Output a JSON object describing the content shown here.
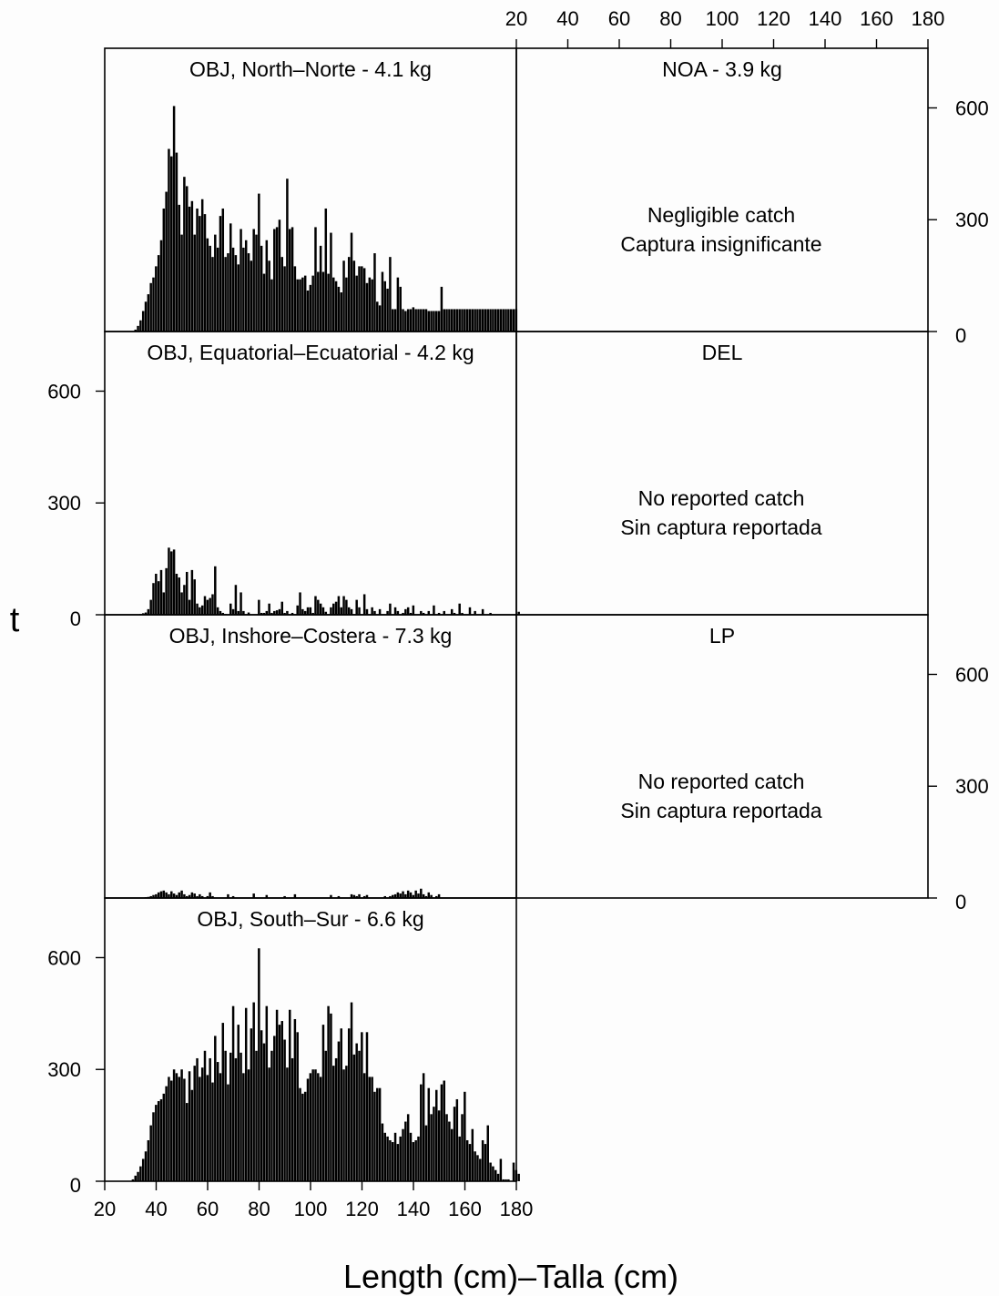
{
  "chart_data": {
    "type": "bar",
    "ylabel": "t",
    "xlabel": "Length (cm)–Talla (cm)",
    "xlim": [
      20,
      180
    ],
    "ylim": [
      0,
      760
    ],
    "x_ticks": [
      "20",
      "40",
      "60",
      "80",
      "100",
      "120",
      "140",
      "160",
      "180"
    ],
    "y_ticks": [
      "0",
      "300",
      "600"
    ],
    "panels": [
      {
        "id": "obj-north",
        "title": "OBJ, North–Norte - 4.1 kg",
        "note": [],
        "start_length": 32,
        "values": [
          5,
          15,
          30,
          55,
          80,
          100,
          130,
          145,
          175,
          205,
          245,
          330,
          375,
          490,
          470,
          605,
          480,
          340,
          260,
          415,
          390,
          335,
          350,
          260,
          330,
          310,
          355,
          315,
          250,
          230,
          200,
          260,
          225,
          310,
          330,
          200,
          210,
          290,
          225,
          205,
          180,
          275,
          225,
          245,
          210,
          190,
          275,
          260,
          370,
          230,
          155,
          245,
          190,
          140,
          275,
          280,
          300,
          200,
          175,
          410,
          275,
          280,
          175,
          140,
          140,
          145,
          150,
          110,
          125,
          150,
          280,
          160,
          230,
          160,
          330,
          155,
          265,
          145,
          135,
          120,
          105,
          190,
          145,
          200,
          265,
          190,
          150,
          175,
          175,
          170,
          130,
          145,
          140,
          210,
          80,
          70,
          160,
          135,
          115,
          200,
          60,
          60,
          145,
          120,
          60,
          55,
          60,
          60,
          65,
          60,
          60,
          60,
          60,
          60,
          55,
          55,
          55,
          55,
          55,
          120,
          60,
          60,
          60,
          60,
          60,
          60,
          60,
          60,
          60,
          60,
          60,
          60,
          60,
          60,
          60,
          60,
          60,
          60,
          60,
          60,
          60,
          60,
          60,
          60,
          60,
          60,
          60,
          60,
          60
        ]
      },
      {
        "id": "noa",
        "title": "NOA - 3.9 kg",
        "note": [
          "Negligible catch",
          "Captura insignificante"
        ],
        "start_length": null,
        "values": []
      },
      {
        "id": "obj-equatorial",
        "title": "OBJ, Equatorial–Ecuatorial - 4.2 kg",
        "note": [],
        "start_length": 34,
        "values": [
          2,
          4,
          6,
          15,
          40,
          85,
          110,
          90,
          120,
          60,
          125,
          180,
          170,
          175,
          110,
          100,
          60,
          80,
          115,
          40,
          120,
          95,
          30,
          20,
          25,
          50,
          40,
          45,
          55,
          130,
          20,
          10,
          5,
          2,
          0,
          30,
          15,
          80,
          10,
          60,
          10,
          0,
          6,
          0,
          0,
          0,
          40,
          5,
          5,
          10,
          30,
          5,
          10,
          12,
          15,
          35,
          5,
          10,
          0,
          5,
          0,
          25,
          60,
          15,
          10,
          20,
          20,
          5,
          50,
          40,
          30,
          20,
          8,
          0,
          20,
          30,
          35,
          50,
          20,
          50,
          40,
          20,
          15,
          0,
          40,
          20,
          0,
          55,
          15,
          0,
          20,
          10,
          0,
          15,
          0,
          0,
          10,
          30,
          0,
          20,
          10,
          0,
          5,
          15,
          20,
          5,
          25,
          0,
          0,
          10,
          5,
          0,
          10,
          0,
          25,
          0,
          5,
          0,
          10,
          0,
          0,
          15,
          5,
          0,
          30,
          5,
          0,
          0,
          20,
          0,
          10,
          0,
          0,
          15,
          0,
          0,
          5,
          0,
          0,
          0,
          0,
          0,
          0,
          0,
          0,
          0,
          0,
          8,
          0,
          0
        ]
      },
      {
        "id": "del",
        "title": "DEL",
        "note": [
          "No reported catch",
          "Sin captura reportada"
        ],
        "start_length": null,
        "values": []
      },
      {
        "id": "obj-inshore",
        "title": "OBJ, Inshore–Costera - 7.3 kg",
        "note": [],
        "start_length": 36,
        "values": [
          2,
          3,
          5,
          8,
          10,
          15,
          18,
          20,
          15,
          10,
          18,
          12,
          8,
          15,
          20,
          10,
          5,
          8,
          15,
          12,
          5,
          10,
          5,
          0,
          5,
          15,
          5,
          0,
          0,
          0,
          0,
          0,
          10,
          0,
          5,
          0,
          0,
          0,
          0,
          0,
          0,
          0,
          12,
          0,
          0,
          0,
          0,
          8,
          0,
          0,
          0,
          0,
          0,
          0,
          5,
          0,
          0,
          0,
          10,
          0,
          0,
          0,
          0,
          0,
          0,
          0,
          0,
          0,
          0,
          0,
          0,
          0,
          8,
          0,
          0,
          5,
          0,
          0,
          0,
          0,
          10,
          8,
          5,
          10,
          0,
          5,
          8,
          0,
          0,
          0,
          0,
          0,
          0,
          5,
          0,
          5,
          8,
          10,
          15,
          12,
          18,
          10,
          20,
          15,
          8,
          20,
          12,
          25,
          10,
          5,
          15,
          8,
          0,
          5,
          10,
          0,
          0,
          0,
          0,
          0
        ]
      },
      {
        "id": "lp",
        "title": "LP",
        "note": [
          "No reported catch",
          "Sin captura reportada"
        ],
        "start_length": null,
        "values": []
      },
      {
        "id": "obj-south",
        "title": "OBJ, South–Sur - 6.6 kg",
        "note": [],
        "start_length": 31,
        "values": [
          5,
          15,
          25,
          40,
          60,
          80,
          110,
          150,
          185,
          205,
          215,
          220,
          235,
          255,
          280,
          270,
          300,
          290,
          280,
          300,
          275,
          210,
          295,
          245,
          310,
          330,
          280,
          305,
          350,
          285,
          330,
          265,
          390,
          320,
          290,
          425,
          350,
          260,
          345,
          470,
          330,
          420,
          345,
          290,
          465,
          300,
          410,
          480,
          350,
          625,
          405,
          370,
          470,
          305,
          350,
          390,
          460,
          420,
          430,
          380,
          305,
          460,
          330,
          435,
          400,
          250,
          235,
          240,
          275,
          290,
          300,
          300,
          290,
          280,
          420,
          350,
          470,
          450,
          310,
          330,
          375,
          410,
          300,
          310,
          410,
          480,
          340,
          370,
          350,
          400,
          290,
          400,
          280,
          280,
          240,
          250,
          250,
          155,
          130,
          120,
          110,
          105,
          130,
          100,
          120,
          140,
          160,
          180,
          130,
          105,
          110,
          120,
          260,
          290,
          150,
          250,
          180,
          200,
          245,
          190,
          260,
          270,
          180,
          160,
          140,
          200,
          220,
          120,
          180,
          240,
          110,
          100,
          140,
          80,
          70,
          60,
          110,
          100,
          150,
          50,
          40,
          30,
          20,
          60,
          5,
          5,
          5,
          0,
          50,
          30,
          20,
          0
        ]
      }
    ]
  }
}
